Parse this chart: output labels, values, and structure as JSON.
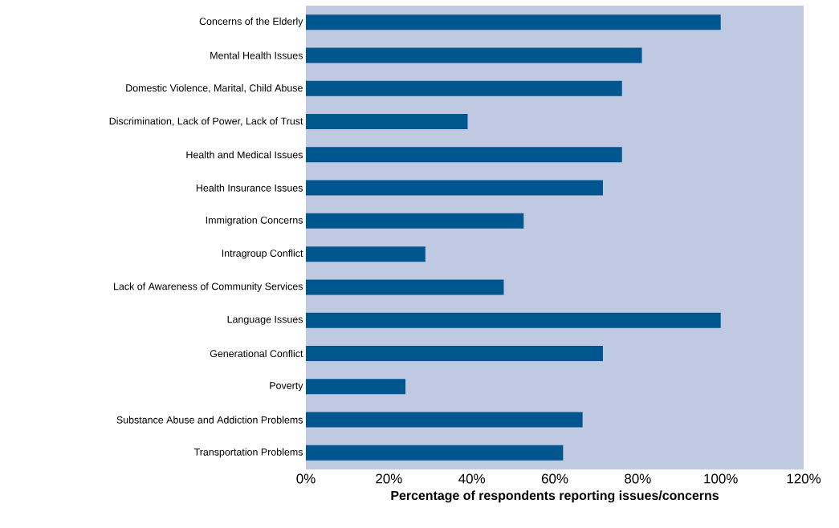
{
  "chart_data": {
    "type": "bar",
    "orientation": "horizontal",
    "xlabel": "Percentage of respondents reporting issues/concerns",
    "categories": [
      "Concerns of the Elderly",
      "Mental Health Issues",
      "Domestic Violence, Marital, Child Abuse",
      "Discrimination, Lack of Power, Lack of Trust",
      "Health and Medical Issues",
      "Health Insurance Issues",
      "Immigration Concerns",
      "Intragroup Conflict",
      "Lack of Awareness of Community Services",
      "Language Issues",
      "Generational Conflict",
      "Poverty",
      "Substance Abuse and Addiction Problems",
      "Transportation Problems"
    ],
    "values": [
      100,
      81,
      76.2,
      39,
      76.2,
      71.6,
      52.5,
      28.8,
      47.7,
      100,
      71.6,
      24,
      66.7,
      62
    ],
    "color": "#00568f",
    "xlim": [
      0,
      120
    ],
    "xticks": [
      {
        "value": 0,
        "label": "0%"
      },
      {
        "value": 20,
        "label": "20%"
      },
      {
        "value": 40,
        "label": "40%"
      },
      {
        "value": 60,
        "label": "60%"
      },
      {
        "value": 80,
        "label": "80%"
      },
      {
        "value": 100,
        "label": "100%"
      },
      {
        "value": 120,
        "label": "120%"
      }
    ]
  }
}
